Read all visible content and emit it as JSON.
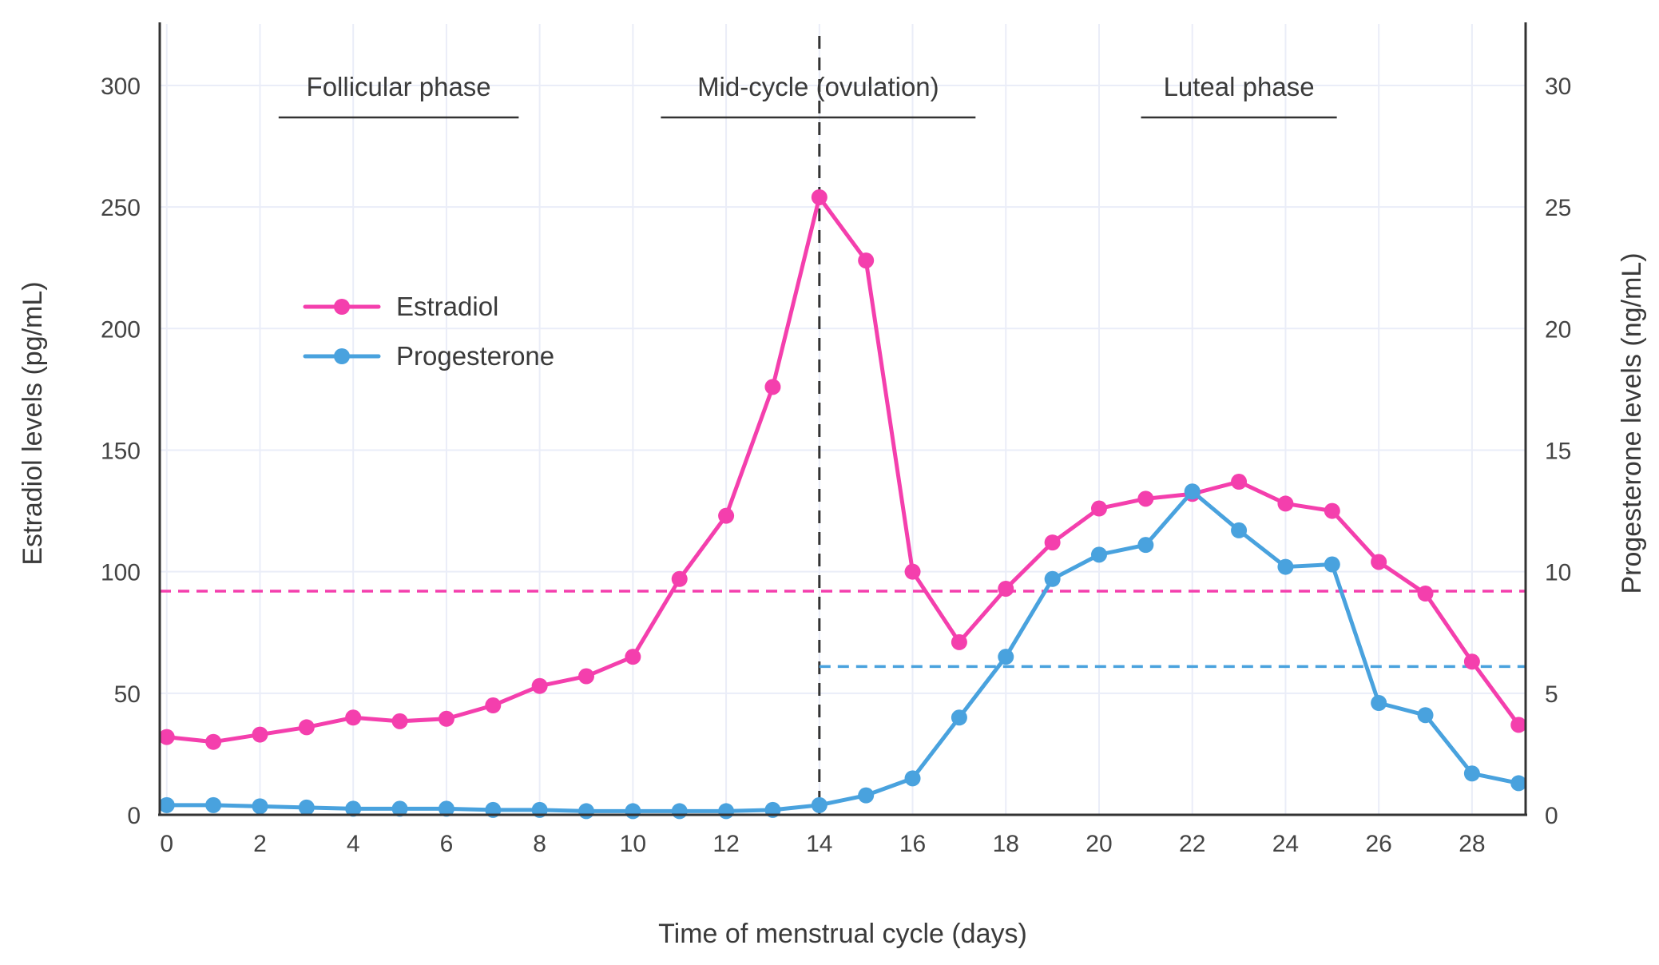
{
  "chart_data": {
    "type": "line",
    "title": "",
    "xlabel": "Time of menstrual cycle (days)",
    "ylabel_left": "Estradiol levels (pg/mL)",
    "ylabel_right": "Progesterone levels (ng/mL)",
    "x": [
      0,
      1,
      2,
      3,
      4,
      5,
      6,
      7,
      8,
      9,
      10,
      11,
      12,
      13,
      14,
      15,
      16,
      17,
      18,
      19,
      20,
      21,
      22,
      23,
      24,
      25,
      26,
      27,
      28,
      29
    ],
    "series": [
      {
        "name": "Estradiol",
        "axis": "left",
        "color": "#f43fad",
        "values": [
          32,
          30,
          33,
          36,
          40,
          38.5,
          39.5,
          45,
          53,
          57,
          65,
          97,
          123,
          176,
          254,
          228,
          100,
          71,
          93,
          112,
          126,
          130,
          132,
          137,
          128,
          125,
          104,
          91,
          63,
          37
        ]
      },
      {
        "name": "Progesterone",
        "axis": "right",
        "color": "#49a2de",
        "values": [
          0.4,
          0.4,
          0.35,
          0.3,
          0.25,
          0.25,
          0.25,
          0.2,
          0.2,
          0.15,
          0.15,
          0.15,
          0.15,
          0.2,
          0.4,
          0.8,
          1.5,
          4,
          6.5,
          9.7,
          10.7,
          11.1,
          13.3,
          11.7,
          10.2,
          10.3,
          4.6,
          4.1,
          1.7,
          1.3
        ]
      }
    ],
    "xlim": [
      -0.15,
      29.15
    ],
    "ylim_left": [
      0,
      322
    ],
    "ylim_right": [
      0,
      32.2
    ],
    "xticks": [
      0,
      2,
      4,
      6,
      8,
      10,
      12,
      14,
      16,
      18,
      20,
      22,
      24,
      26,
      28
    ],
    "yticks_left": [
      0,
      50,
      100,
      150,
      200,
      250,
      300
    ],
    "yticks_right": [
      0,
      5,
      10,
      15,
      20,
      25,
      30
    ],
    "grid": true,
    "legend_position": "upper-left-inside",
    "reference_lines": [
      {
        "name": "ovulation-day-line",
        "type": "vline",
        "x": 14,
        "color": "#333333",
        "style": "dashed"
      },
      {
        "name": "estradiol-reference-line",
        "type": "hline",
        "axis": "left",
        "y": 92,
        "from_x": null,
        "to_x": null,
        "color": "#f43fad",
        "style": "dashed"
      },
      {
        "name": "progesterone-reference-line",
        "type": "hline",
        "axis": "right",
        "y": 6.1,
        "from_x": 14,
        "to_x": null,
        "color": "#49a2de",
        "style": "dashed"
      }
    ],
    "annotations": [
      {
        "label": "Follicular phase",
        "underline_from": 2.4,
        "underline_to": 7.55
      },
      {
        "label": "Mid-cycle (ovulation)",
        "underline_from": 10.6,
        "underline_to": 17.35
      },
      {
        "label": "Luteal phase",
        "underline_from": 20.9,
        "underline_to": 25.1
      }
    ],
    "colors": {
      "background": "#ffffff",
      "grid": "#eaedf8",
      "axis": "#333333",
      "text": "#3a3a3a"
    }
  }
}
